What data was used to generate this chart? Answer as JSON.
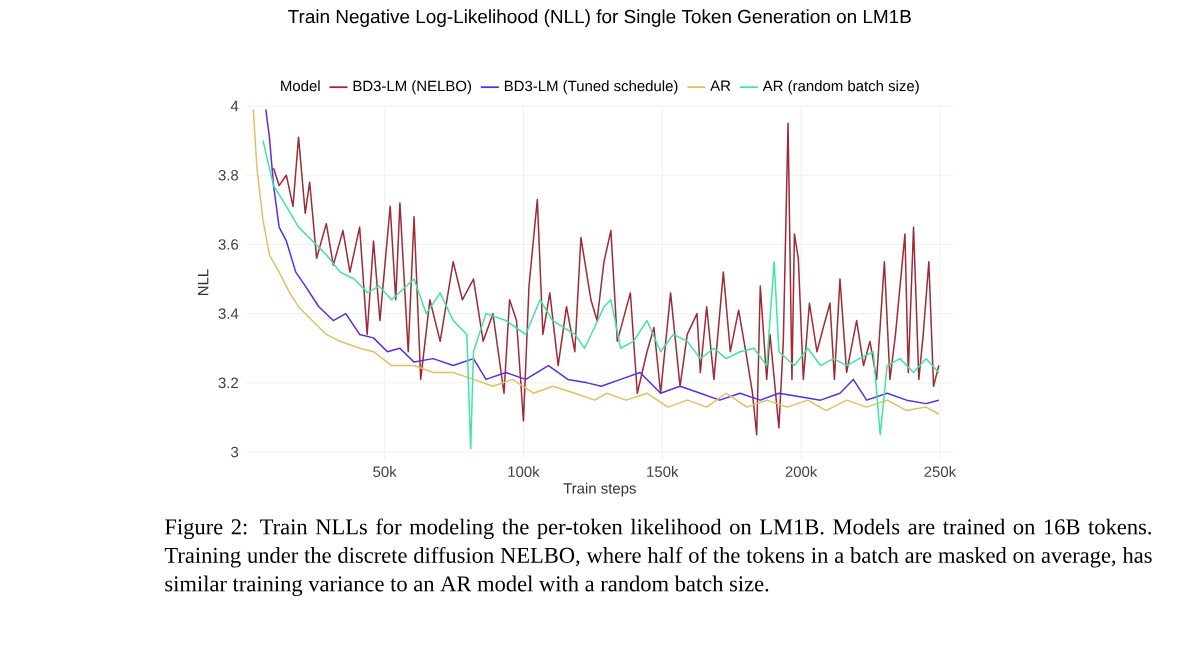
{
  "chart_data": {
    "type": "line",
    "title": "Train Negative Log-Likelihood (NLL) for Single Token Generation on LM1B",
    "xlabel": "Train steps",
    "ylabel": "NLL",
    "legend_title": "Model",
    "legend": "top",
    "grid": true,
    "marker": "none",
    "line_style": "solid",
    "xlim": [
      0,
      255000
    ],
    "ylim": [
      2.98,
      4.0
    ],
    "xticks": [
      {
        "value": 50000,
        "label": "50k"
      },
      {
        "value": 100000,
        "label": "100k"
      },
      {
        "value": 150000,
        "label": "150k"
      },
      {
        "value": 200000,
        "label": "200k"
      },
      {
        "value": 250000,
        "label": "250k"
      }
    ],
    "yticks": [
      3,
      3.2,
      3.4,
      3.6,
      3.8,
      4
    ],
    "annotations": [
      "Figure 2: Train NLLs for modeling the per-token likelihood on LM1B. Models are trained on 16B tokens. Training under the discrete diffusion NELBO, where half of the tokens in a batch are masked on average, has similar training variance to an AR model with a random batch size."
    ],
    "series": [
      {
        "name": "BD3-LM (NELBO)",
        "color": "#9e2a35",
        "x": [
          10000,
          12000,
          14600,
          17000,
          19000,
          21400,
          23000,
          25500,
          29000,
          31500,
          35000,
          37500,
          41000,
          43700,
          46000,
          48300,
          52000,
          54000,
          55500,
          58500,
          60600,
          63000,
          66300,
          70000,
          74700,
          78000,
          82000,
          85500,
          89000,
          93000,
          95000,
          97500,
          100000,
          102000,
          105000,
          107000,
          109500,
          112500,
          115500,
          118500,
          120700,
          124300,
          126500,
          129000,
          131500,
          133800,
          138500,
          141000,
          144500,
          147000,
          149400,
          153000,
          156400,
          159000,
          162500,
          163700,
          166000,
          168600,
          172000,
          174500,
          177500,
          180500,
          182500,
          184000,
          185300,
          187600,
          188800,
          192000,
          193600,
          195300,
          196700,
          197600,
          199000,
          200800,
          203000,
          205700,
          208000,
          210400,
          212000,
          214000,
          216400,
          220000,
          222500,
          224800,
          227200,
          230000,
          232000,
          234000,
          237400,
          238600,
          240500,
          242400,
          244000,
          246000,
          247700,
          249600
        ],
        "values": [
          3.82,
          3.77,
          3.8,
          3.71,
          3.91,
          3.69,
          3.78,
          3.56,
          3.66,
          3.54,
          3.64,
          3.52,
          3.65,
          3.34,
          3.61,
          3.38,
          3.71,
          3.44,
          3.72,
          3.29,
          3.68,
          3.21,
          3.44,
          3.32,
          3.55,
          3.44,
          3.5,
          3.32,
          3.4,
          3.17,
          3.44,
          3.38,
          3.09,
          3.48,
          3.73,
          3.34,
          3.46,
          3.25,
          3.42,
          3.29,
          3.62,
          3.44,
          3.38,
          3.55,
          3.64,
          3.32,
          3.46,
          3.17,
          3.29,
          3.36,
          3.17,
          3.46,
          3.19,
          3.34,
          3.4,
          3.23,
          3.42,
          3.21,
          3.52,
          3.29,
          3.41,
          3.27,
          3.17,
          3.05,
          3.48,
          3.21,
          3.34,
          3.07,
          3.32,
          3.95,
          3.21,
          3.63,
          3.56,
          3.21,
          3.43,
          3.29,
          3.36,
          3.43,
          3.21,
          3.5,
          3.23,
          3.38,
          3.25,
          3.32,
          3.21,
          3.55,
          3.21,
          3.34,
          3.63,
          3.23,
          3.65,
          3.21,
          3.34,
          3.55,
          3.19,
          3.25
        ]
      },
      {
        "name": "BD3-LM (Tuned schedule)",
        "color": "#5a2de0",
        "x": [
          7200,
          8500,
          10000,
          12000,
          14600,
          18000,
          21400,
          26300,
          31500,
          36000,
          41000,
          46000,
          51000,
          55500,
          60600,
          67500,
          74700,
          82000,
          86500,
          93700,
          100800,
          109000,
          116000,
          123000,
          128000,
          135000,
          142000,
          149400,
          156400,
          163700,
          170700,
          178000,
          185300,
          192000,
          199600,
          207000,
          214000,
          218800,
          223600,
          231000,
          238000,
          245000,
          249600
        ],
        "values": [
          3.99,
          3.91,
          3.77,
          3.65,
          3.61,
          3.52,
          3.48,
          3.42,
          3.38,
          3.4,
          3.34,
          3.33,
          3.29,
          3.3,
          3.26,
          3.27,
          3.25,
          3.27,
          3.21,
          3.23,
          3.21,
          3.25,
          3.21,
          3.2,
          3.19,
          3.21,
          3.23,
          3.17,
          3.19,
          3.17,
          3.15,
          3.17,
          3.15,
          3.17,
          3.16,
          3.15,
          3.17,
          3.21,
          3.15,
          3.17,
          3.15,
          3.14,
          3.15
        ]
      },
      {
        "name": "AR",
        "color": "#e0c062",
        "x": [
          2700,
          4000,
          6200,
          8500,
          12000,
          15800,
          19000,
          24000,
          29000,
          34000,
          41000,
          46000,
          52500,
          60600,
          67500,
          74700,
          82000,
          89000,
          96000,
          103600,
          110500,
          118500,
          125600,
          130000,
          137000,
          144500,
          152000,
          159000,
          166000,
          173000,
          180500,
          187600,
          195000,
          202400,
          209000,
          216400,
          223600,
          231000,
          238000,
          245000,
          249600
        ],
        "values": [
          3.99,
          3.82,
          3.67,
          3.57,
          3.52,
          3.46,
          3.42,
          3.38,
          3.34,
          3.32,
          3.3,
          3.29,
          3.25,
          3.25,
          3.23,
          3.23,
          3.21,
          3.19,
          3.21,
          3.17,
          3.19,
          3.17,
          3.15,
          3.17,
          3.15,
          3.17,
          3.13,
          3.15,
          3.13,
          3.17,
          3.13,
          3.15,
          3.13,
          3.15,
          3.12,
          3.15,
          3.13,
          3.15,
          3.12,
          3.13,
          3.11
        ]
      },
      {
        "name": "AR (random batch size)",
        "color": "#3ee6a6",
        "x": [
          6200,
          10000,
          14600,
          19000,
          24000,
          29000,
          34000,
          39000,
          44000,
          48000,
          52500,
          60600,
          65000,
          70000,
          74700,
          79600,
          81000,
          82000,
          86500,
          93700,
          100800,
          106000,
          110500,
          118500,
          122000,
          125600,
          129000,
          131500,
          135000,
          139600,
          144500,
          149400,
          154000,
          159000,
          163700,
          168600,
          173000,
          178000,
          183000,
          187600,
          190300,
          192000,
          197600,
          202400,
          207000,
          211700,
          216400,
          221000,
          226000,
          228500,
          231000,
          235600,
          240500,
          245000,
          249600
        ],
        "values": [
          3.9,
          3.77,
          3.71,
          3.65,
          3.61,
          3.57,
          3.52,
          3.5,
          3.46,
          3.48,
          3.44,
          3.5,
          3.4,
          3.46,
          3.38,
          3.34,
          3.01,
          3.29,
          3.4,
          3.38,
          3.34,
          3.44,
          3.38,
          3.34,
          3.3,
          3.36,
          3.42,
          3.44,
          3.3,
          3.32,
          3.38,
          3.29,
          3.34,
          3.32,
          3.27,
          3.3,
          3.27,
          3.29,
          3.3,
          3.25,
          3.55,
          3.29,
          3.25,
          3.3,
          3.25,
          3.27,
          3.25,
          3.27,
          3.29,
          3.05,
          3.25,
          3.27,
          3.23,
          3.27,
          3.23
        ]
      }
    ]
  }
}
